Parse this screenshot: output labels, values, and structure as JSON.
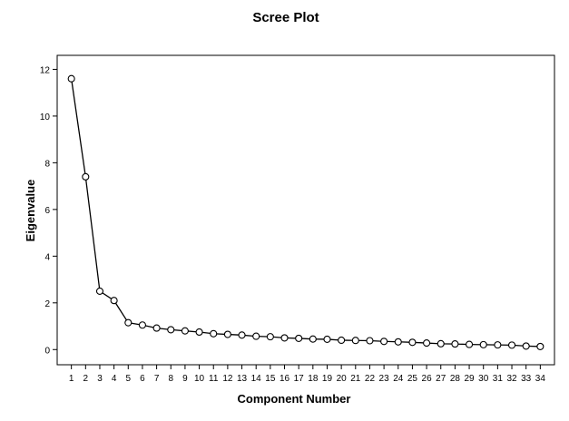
{
  "chart_data": {
    "type": "line",
    "title": "Scree Plot",
    "xlabel": "Component Number",
    "ylabel": "Eigenvalue",
    "x": [
      1,
      2,
      3,
      4,
      5,
      6,
      7,
      8,
      9,
      10,
      11,
      12,
      13,
      14,
      15,
      16,
      17,
      18,
      19,
      20,
      21,
      22,
      23,
      24,
      25,
      26,
      27,
      28,
      29,
      30,
      31,
      32,
      33,
      34
    ],
    "series": [
      {
        "values": [
          11.6,
          7.4,
          2.5,
          2.1,
          1.15,
          1.05,
          0.92,
          0.85,
          0.8,
          0.75,
          0.68,
          0.65,
          0.62,
          0.57,
          0.55,
          0.5,
          0.48,
          0.45,
          0.44,
          0.4,
          0.39,
          0.38,
          0.35,
          0.33,
          0.31,
          0.28,
          0.25,
          0.24,
          0.22,
          0.21,
          0.2,
          0.19,
          0.15,
          0.13
        ]
      }
    ],
    "yticks": [
      0,
      2,
      4,
      6,
      8,
      10,
      12
    ],
    "ylim": [
      -0.65,
      12.6
    ],
    "xlim": [
      0,
      35
    ],
    "grid": false,
    "marker": "hollow-circle",
    "line_color": "#000000"
  }
}
